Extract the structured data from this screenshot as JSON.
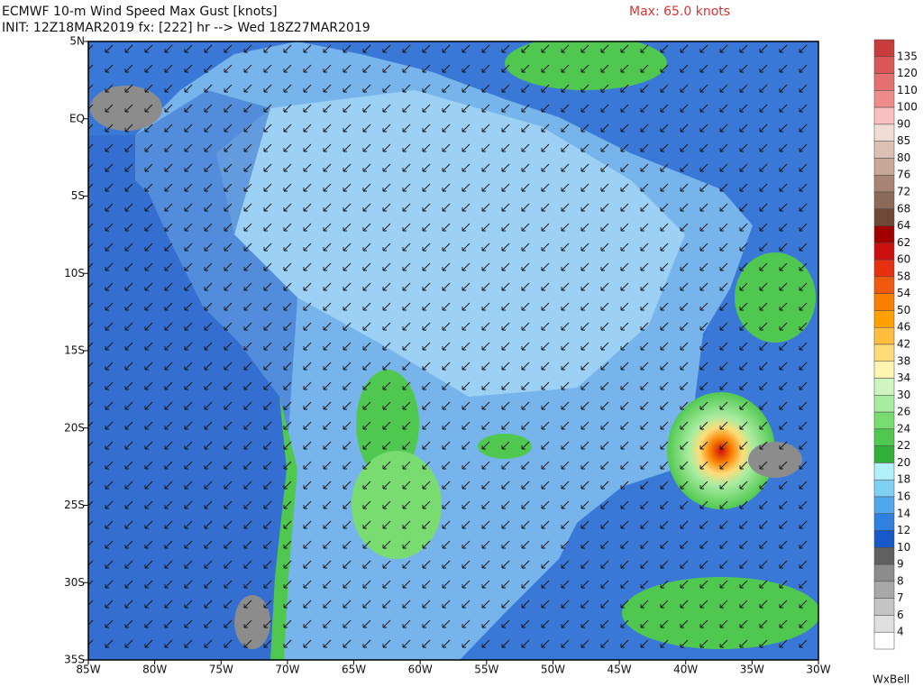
{
  "header": {
    "title": "ECMWF 10-m Wind Speed Max Gust [knots]",
    "subtitle": "INIT: 12Z18MAR2019 fx: [222] hr --> Wed 18Z27MAR2019",
    "max_label": "Max: 65.0 knots"
  },
  "map": {
    "lat_labels": [
      "5N",
      "EQ",
      "5S",
      "10S",
      "15S",
      "20S",
      "25S",
      "30S",
      "35S"
    ],
    "lon_labels": [
      "85W",
      "80W",
      "75W",
      "70W",
      "65W",
      "60W",
      "55W",
      "50W",
      "45W",
      "40W",
      "35W",
      "30W"
    ]
  },
  "colorbar": {
    "levels": [
      135,
      120,
      110,
      100,
      90,
      85,
      80,
      76,
      72,
      68,
      64,
      62,
      60,
      58,
      54,
      50,
      46,
      42,
      38,
      34,
      30,
      26,
      24,
      22,
      20,
      18,
      16,
      14,
      12,
      10,
      9,
      8,
      7,
      6,
      4
    ],
    "colors": [
      "#c83c3c",
      "#d85858",
      "#e47070",
      "#ee8c8c",
      "#fac0c0",
      "#f0dcd4",
      "#dcc0b4",
      "#c8a898",
      "#a88474",
      "#8c6a5a",
      "#704838",
      "#a00000",
      "#cc1010",
      "#e63010",
      "#f05a10",
      "#f88000",
      "#ffa000",
      "#ffbe40",
      "#ffdc78",
      "#fff4b0",
      "#d0f4c0",
      "#a8eca0",
      "#78dc70",
      "#50c850",
      "#30b038",
      "#b0f0f8",
      "#80d0f4",
      "#50a8ec",
      "#3080e0",
      "#1858c8",
      "#606060",
      "#8c8c8c",
      "#a8a8a8",
      "#c4c4c4",
      "#e0e0e0",
      "#ffffff"
    ]
  },
  "logo": "WxBell"
}
